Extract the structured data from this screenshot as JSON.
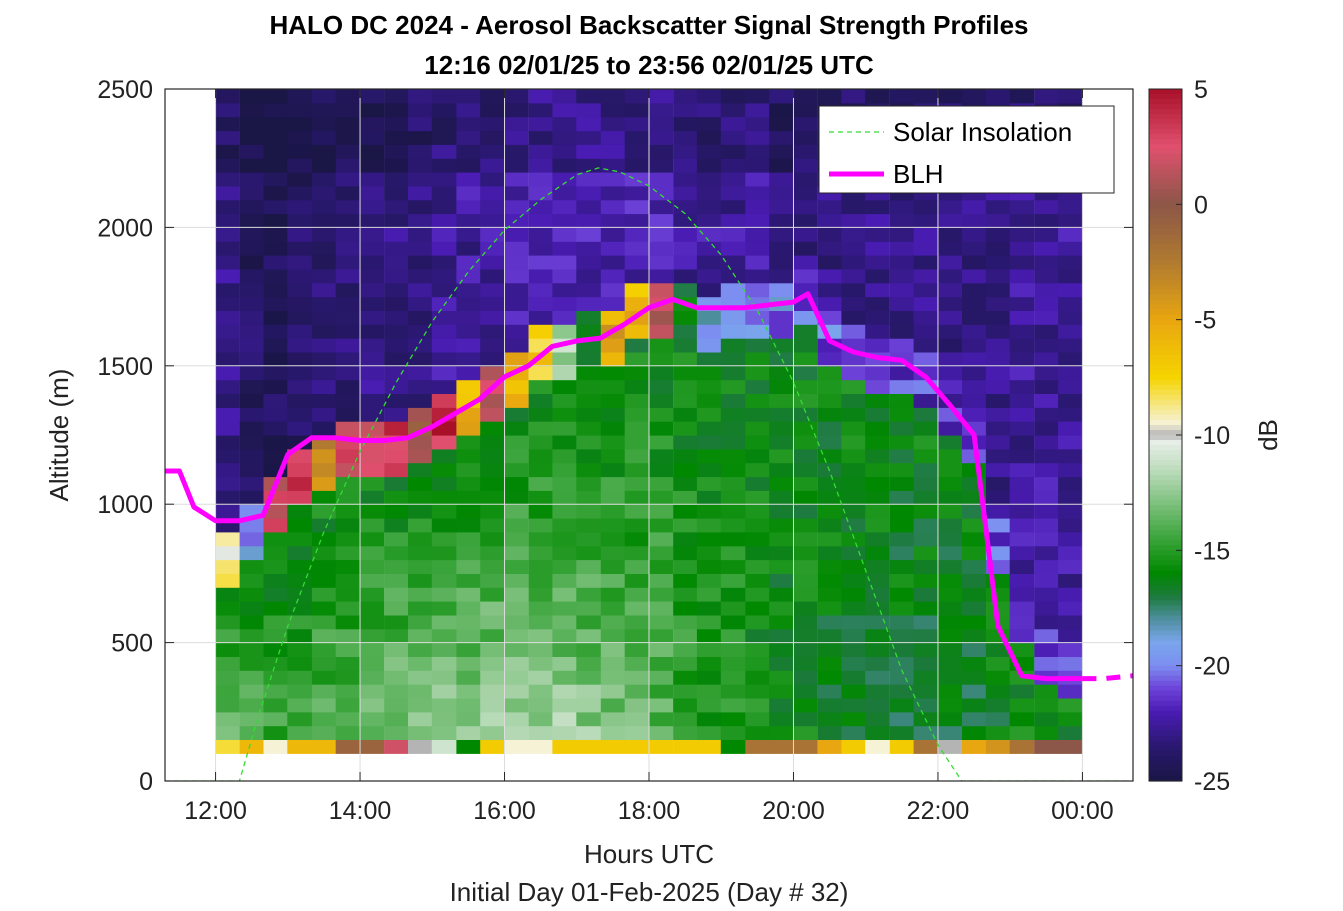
{
  "chart_data": {
    "type": "heatmap",
    "title": "HALO DC 2024 - Aerosol Backscatter Signal Strength Profiles",
    "subtitle": "12:16 02/01/25 to 23:56 02/01/25  UTC",
    "xlabel": "Hours UTC",
    "xlabel2": "Initial Day 01-Feb-2025 (Day # 32)",
    "ylabel": "Altitude (m)",
    "colorbar_label": "dB",
    "x_ticks": [
      "12:00",
      "14:00",
      "16:00",
      "18:00",
      "20:00",
      "22:00",
      "00:00"
    ],
    "x_tick_values": [
      12,
      14,
      16,
      18,
      20,
      22,
      24
    ],
    "y_ticks": [
      "0",
      "500",
      "1000",
      "1500",
      "2000",
      "2500"
    ],
    "y_tick_values": [
      0,
      500,
      1000,
      1500,
      2000,
      2500
    ],
    "colorbar_ticks": [
      "5",
      "0",
      "-5",
      "-10",
      "-15",
      "-20",
      "-25"
    ],
    "colorbar_tick_values": [
      5,
      0,
      -5,
      -10,
      -15,
      -20,
      -25
    ],
    "xlim": [
      11.3,
      24.7
    ],
    "ylim": [
      0,
      2500
    ],
    "clim": [
      -25,
      5
    ],
    "grid": true,
    "legend_position": "top-right",
    "colormap": [
      {
        "v": -25,
        "c": "#1a1646"
      },
      {
        "v": -23.5,
        "c": "#2a1870"
      },
      {
        "v": -22,
        "c": "#4a1cb4"
      },
      {
        "v": -21,
        "c": "#6d42d8"
      },
      {
        "v": -20,
        "c": "#7c8ef0"
      },
      {
        "v": -19,
        "c": "#7aa6ec"
      },
      {
        "v": -18,
        "c": "#4f8fa0"
      },
      {
        "v": -17,
        "c": "#1c7a3c"
      },
      {
        "v": -16,
        "c": "#008800"
      },
      {
        "v": -14.5,
        "c": "#3aa43a"
      },
      {
        "v": -13,
        "c": "#7cc07c"
      },
      {
        "v": -11.5,
        "c": "#bddcbd"
      },
      {
        "v": -10.3,
        "c": "#e8eee8"
      },
      {
        "v": -10,
        "c": "#b4b4b4"
      },
      {
        "v": -9.5,
        "c": "#f6f2d6"
      },
      {
        "v": -7.5,
        "c": "#f6d400"
      },
      {
        "v": -5,
        "c": "#e8a610"
      },
      {
        "v": -2.5,
        "c": "#b07a30"
      },
      {
        "v": 0,
        "c": "#8c5648"
      },
      {
        "v": 2.5,
        "c": "#e0506e"
      },
      {
        "v": 5,
        "c": "#a81028"
      }
    ],
    "profile_columns": [
      {
        "x": 12.16,
        "bl": 830,
        "peak": -11,
        "edge": -9,
        "top": -23
      },
      {
        "x": 12.5,
        "bl": 930,
        "peak": -12,
        "edge": -20,
        "top": -24
      },
      {
        "x": 12.83,
        "bl": 1030,
        "peak": -14,
        "edge": 2,
        "top": -24
      },
      {
        "x": 13.16,
        "bl": 1130,
        "peak": -14,
        "edge": 3,
        "top": -24
      },
      {
        "x": 13.5,
        "bl": 1180,
        "peak": -13,
        "edge": -3,
        "top": -23.5
      },
      {
        "x": 13.83,
        "bl": 1200,
        "peak": -12.5,
        "edge": 2,
        "top": -23.5
      },
      {
        "x": 14.16,
        "bl": 1220,
        "peak": -12,
        "edge": 3,
        "top": -23
      },
      {
        "x": 14.5,
        "bl": 1230,
        "peak": -11.5,
        "edge": 3,
        "top": -23
      },
      {
        "x": 14.83,
        "bl": 1250,
        "peak": -11.5,
        "edge": 0,
        "top": -23
      },
      {
        "x": 15.16,
        "bl": 1300,
        "peak": -11,
        "edge": 4,
        "top": -22.5
      },
      {
        "x": 15.5,
        "bl": 1360,
        "peak": -11,
        "edge": -6,
        "top": -22.5
      },
      {
        "x": 15.83,
        "bl": 1430,
        "peak": -10.8,
        "edge": 2,
        "top": -22.5
      },
      {
        "x": 16.16,
        "bl": 1490,
        "peak": -10.8,
        "edge": -6,
        "top": -22
      },
      {
        "x": 16.5,
        "bl": 1560,
        "peak": -11,
        "edge": -7,
        "top": -22
      },
      {
        "x": 16.83,
        "bl": 1590,
        "peak": -11,
        "edge": -12,
        "top": -22
      },
      {
        "x": 17.16,
        "bl": 1600,
        "peak": -11.5,
        "edge": -16,
        "top": -22
      },
      {
        "x": 17.5,
        "bl": 1620,
        "peak": -12,
        "edge": -5,
        "top": -22
      },
      {
        "x": 17.83,
        "bl": 1700,
        "peak": -12.5,
        "edge": -6,
        "top": -22
      },
      {
        "x": 18.16,
        "bl": 1730,
        "peak": -13,
        "edge": 1,
        "top": -22
      },
      {
        "x": 18.5,
        "bl": 1710,
        "peak": -14,
        "edge": -17,
        "top": -22.5
      },
      {
        "x": 18.83,
        "bl": 1690,
        "peak": -15,
        "edge": -19,
        "top": -22.5
      },
      {
        "x": 19.16,
        "bl": 1700,
        "peak": -15,
        "edge": -20,
        "top": -22.5
      },
      {
        "x": 19.5,
        "bl": 1720,
        "peak": -15.5,
        "edge": -19.5,
        "top": -22.5
      },
      {
        "x": 19.83,
        "bl": 1730,
        "peak": -16,
        "edge": -20,
        "top": -23
      },
      {
        "x": 20.16,
        "bl": 1760,
        "peak": -16,
        "edge": -20.5,
        "top": -23
      },
      {
        "x": 20.5,
        "bl": 1600,
        "peak": -16.5,
        "edge": -20.5,
        "top": -23
      },
      {
        "x": 20.83,
        "bl": 1550,
        "peak": -17,
        "edge": -21,
        "top": -23
      },
      {
        "x": 21.16,
        "bl": 1530,
        "peak": -17,
        "edge": -21,
        "top": -23
      },
      {
        "x": 21.5,
        "bl": 1520,
        "peak": -17,
        "edge": -21.5,
        "top": -23
      },
      {
        "x": 21.83,
        "bl": 1460,
        "peak": -17,
        "edge": -21.5,
        "top": -23
      },
      {
        "x": 22.16,
        "bl": 1360,
        "peak": -17,
        "edge": -21.5,
        "top": -23
      },
      {
        "x": 22.5,
        "bl": 1250,
        "peak": -17,
        "edge": -21.5,
        "top": -23
      },
      {
        "x": 22.83,
        "bl": 850,
        "peak": -16.5,
        "edge": -21,
        "top": -23
      },
      {
        "x": 23.16,
        "bl": 600,
        "peak": -16,
        "edge": -21,
        "top": -22.5
      },
      {
        "x": 23.5,
        "bl": 480,
        "peak": -16,
        "edge": -21,
        "top": -22.5
      },
      {
        "x": 23.83,
        "bl": 420,
        "peak": -16,
        "edge": -21,
        "top": -22.5
      }
    ],
    "series": [
      {
        "name": "Solar Insolation",
        "color": "#33dd33",
        "style": "dashed",
        "x": [
          11.3,
          12.33,
          12.6,
          13.0,
          13.5,
          14.0,
          14.5,
          15.0,
          15.5,
          16.0,
          16.5,
          17.0,
          17.3,
          17.6,
          18.0,
          18.5,
          19.0,
          19.5,
          20.0,
          20.5,
          21.0,
          21.5,
          22.0,
          22.33,
          24.7
        ],
        "y": [
          0,
          0,
          240,
          560,
          900,
          1190,
          1440,
          1660,
          1840,
          1990,
          2100,
          2190,
          2215,
          2200,
          2150,
          2050,
          1900,
          1700,
          1440,
          1120,
          760,
          400,
          130,
          0,
          0
        ]
      },
      {
        "name": "BLH",
        "color": "#ff00ff",
        "style": "solid",
        "x": [
          11.3,
          11.5,
          11.7,
          12.0,
          12.33,
          12.66,
          13.0,
          13.33,
          13.66,
          14.0,
          14.33,
          14.66,
          15.0,
          15.33,
          15.66,
          16.0,
          16.33,
          16.66,
          17.0,
          17.33,
          17.66,
          18.0,
          18.33,
          18.66,
          19.0,
          19.33,
          19.66,
          20.0,
          20.2,
          20.5,
          20.83,
          21.16,
          21.5,
          21.83,
          22.16,
          22.5,
          22.66,
          22.83,
          23.16,
          23.5,
          23.83,
          24.0
        ],
        "y": [
          1120,
          1120,
          990,
          940,
          940,
          960,
          1180,
          1240,
          1240,
          1230,
          1230,
          1240,
          1280,
          1330,
          1380,
          1460,
          1500,
          1570,
          1590,
          1600,
          1650,
          1710,
          1740,
          1710,
          1710,
          1710,
          1720,
          1730,
          1760,
          1590,
          1550,
          1530,
          1520,
          1460,
          1360,
          1250,
          920,
          560,
          380,
          370,
          370,
          370
        ]
      },
      {
        "name": "",
        "color": "#ff00ff",
        "style": "dashed",
        "x": [
          24.0,
          24.3,
          24.7
        ],
        "y": [
          370,
          370,
          380
        ]
      }
    ],
    "legend": [
      "Solar Insolation",
      "BLH"
    ]
  }
}
